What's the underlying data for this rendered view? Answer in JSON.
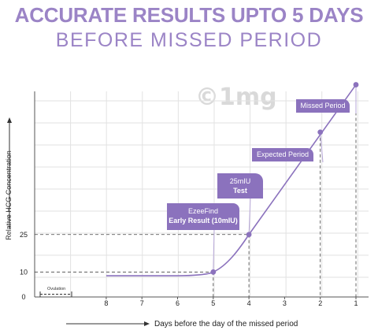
{
  "title": "ACCURATE RESULTS UPTO 5 DAYS",
  "subtitle": "BEFORE MISSED PERIOD",
  "watermark": "©1mg",
  "colors": {
    "accent": "#8b72bd",
    "title": "#9b84c6",
    "grid": "#e2e2e2"
  },
  "chart_data": {
    "type": "line",
    "xlabel": "Days before the day of the missed period",
    "ylabel": "Relative HCG Concentration",
    "x_ticks": [
      "8",
      "7",
      "6",
      "5",
      "4",
      "3",
      "2",
      "1"
    ],
    "y_ticks": [
      "0",
      "10",
      "25"
    ],
    "ovulation_label": "Ovulation",
    "series": [
      {
        "x": [
          8,
          7,
          6,
          5,
          4,
          3,
          2,
          1
        ],
        "y": [
          8.5,
          8.5,
          8.5,
          10,
          25,
          47,
          66,
          85
        ]
      }
    ],
    "markers": [
      {
        "x": 5,
        "y": 10,
        "label_lines": [
          "EzeeFind",
          "Early Result (10mIU)"
        ]
      },
      {
        "x": 4,
        "y": 25,
        "label_lines": [
          "25mIU",
          "Test"
        ]
      },
      {
        "x": 2,
        "y": 66,
        "label_lines": [
          "Expected Period"
        ]
      },
      {
        "x": 1,
        "y": 85,
        "label_lines": [
          "Missed Period"
        ]
      }
    ]
  }
}
